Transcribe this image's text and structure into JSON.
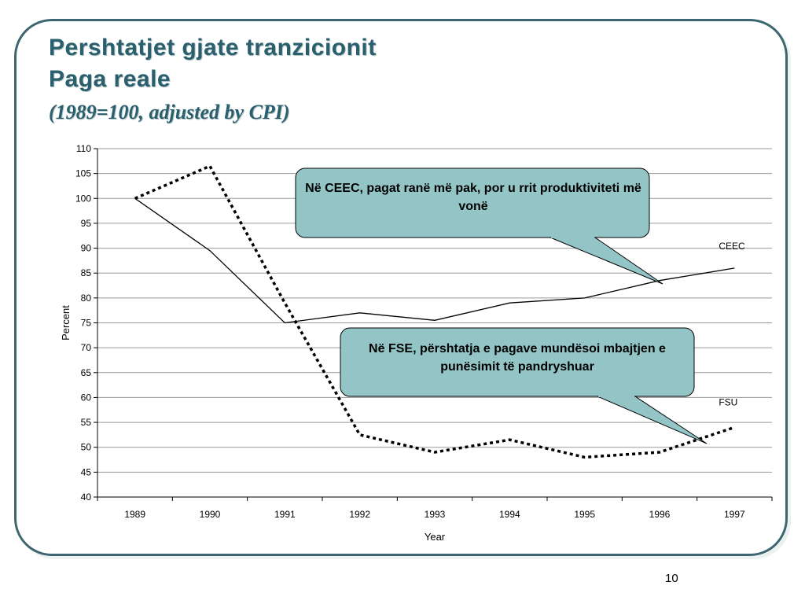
{
  "title": {
    "line1": "Pershtatjet gjate tranzicionit",
    "line2": "Paga reale",
    "line3": "(1989=100, adjusted by CPI)"
  },
  "page_number": "10",
  "colors": {
    "title": "#2a5f6e",
    "frame": "#3d6670",
    "callout_fill": "#93c5c7",
    "series": "#000000"
  },
  "callouts": {
    "ceec": "Në CEEC, pagat ranë më pak, por u rrit produktiviteti më vonë",
    "fsu": "Në FSE, përshtatja e pagave mundësoi mbajtjen e punësimit të pandryshuar"
  },
  "chart_data": {
    "type": "line",
    "x": [
      "1989",
      "1990",
      "1991",
      "1992",
      "1993",
      "1994",
      "1995",
      "1996",
      "1997"
    ],
    "series": [
      {
        "name": "CEEC",
        "style": "solid",
        "values": [
          100,
          89.5,
          75,
          77,
          75.5,
          79,
          80,
          83.5,
          86
        ]
      },
      {
        "name": "FSU",
        "style": "dotted",
        "values": [
          100,
          106.5,
          79,
          52.5,
          49,
          51.5,
          48,
          49,
          54
        ]
      }
    ],
    "xlabel": "Year",
    "ylabel": "Percent",
    "ylim": [
      40,
      110
    ],
    "yticks": [
      40,
      45,
      50,
      55,
      60,
      65,
      70,
      75,
      80,
      85,
      90,
      95,
      100,
      105,
      110
    ],
    "grid": true
  }
}
